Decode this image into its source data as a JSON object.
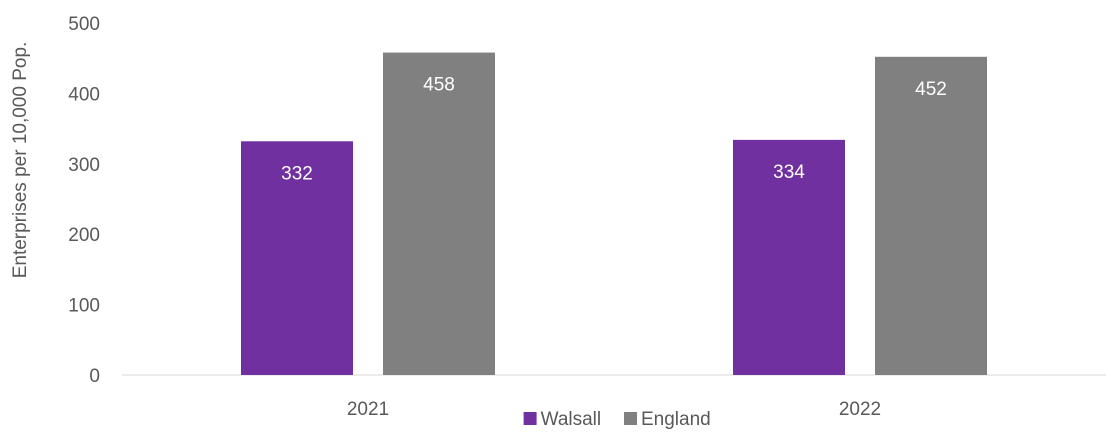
{
  "chart_data": {
    "type": "bar",
    "categories": [
      "2021",
      "2022"
    ],
    "series": [
      {
        "name": "Walsall",
        "values": [
          332,
          334
        ],
        "color": "#7030a0"
      },
      {
        "name": "England",
        "values": [
          458,
          452
        ],
        "color": "#808080"
      }
    ],
    "title": "",
    "xlabel": "",
    "ylabel": "Enterprises per 10,000 Pop.",
    "ylim": [
      0,
      500
    ],
    "yticks": [
      0,
      100,
      200,
      300,
      400,
      500
    ],
    "grid": false,
    "legend": "bottom",
    "data_labels": true
  }
}
